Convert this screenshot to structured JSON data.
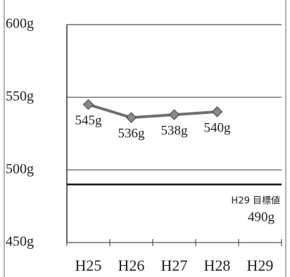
{
  "chart_data": {
    "type": "line",
    "categories": [
      "H25",
      "H26",
      "H27",
      "H28",
      "H29"
    ],
    "values": [
      545,
      536,
      538,
      540,
      null
    ],
    "value_labels": [
      "545g",
      "536g",
      "538g",
      "540g",
      null
    ],
    "color": "#707070",
    "ylim": [
      450,
      600
    ],
    "yticks": [
      {
        "value": 450,
        "label": "450g"
      },
      {
        "value": 500,
        "label": "500g"
      },
      {
        "value": 550,
        "label": "550g"
      },
      {
        "value": 600,
        "label": "600g"
      }
    ],
    "grid": true,
    "target": {
      "value": 490,
      "label": "H29 目標値",
      "value_label": "490g"
    }
  }
}
